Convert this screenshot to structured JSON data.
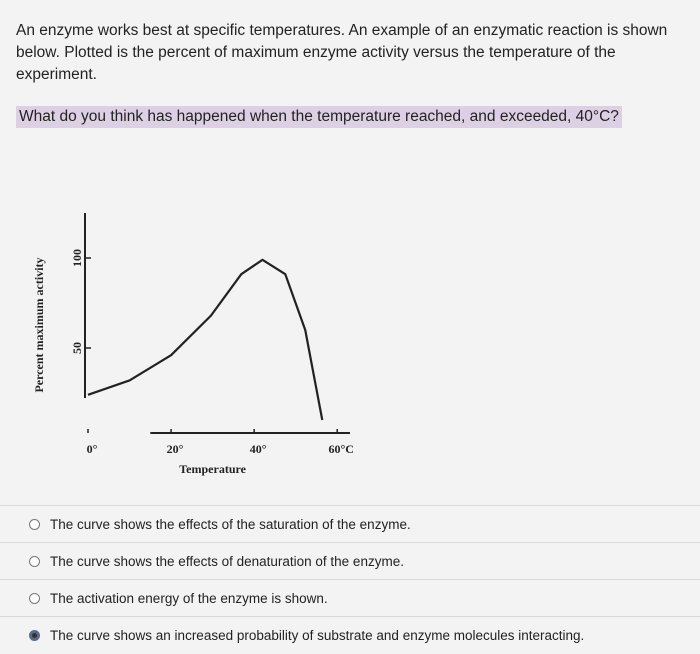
{
  "intro": "An enzyme works best at specific temperatures. An example of an enzymatic reaction is shown below. Plotted is the percent of maximum enzyme activity versus the temperature of the experiment.",
  "question": "What do you think has happened when the temperature reached, and exceeded, 40°C?",
  "chart_data": {
    "type": "line",
    "x_label": "Temperature",
    "y_label": "Percent maximum activity",
    "x": [
      0,
      10,
      20,
      29.6,
      36.9,
      42,
      47.5,
      52.3,
      56.4
    ],
    "series": [
      {
        "color": "#222222",
        "values": [
          24,
          32,
          46,
          68,
          91,
          99,
          91,
          60,
          10
        ]
      }
    ],
    "xlim": [
      0,
      65
    ],
    "ylim": [
      0,
      125
    ],
    "xticks": [
      {
        "value": 0,
        "label": "0°"
      },
      {
        "value": 20,
        "label": "20°"
      },
      {
        "value": 40,
        "label": "40°"
      },
      {
        "value": 60,
        "label": "60°C"
      }
    ],
    "yticks": [
      50,
      100
    ]
  },
  "options": [
    "The curve shows the effects of the saturation of the enzyme.",
    "The curve shows the effects of denaturation of the enzyme.",
    "The activation energy of the enzyme is shown.",
    "The curve shows an increased probability of substrate and enzyme molecules interacting."
  ],
  "selected": 3
}
